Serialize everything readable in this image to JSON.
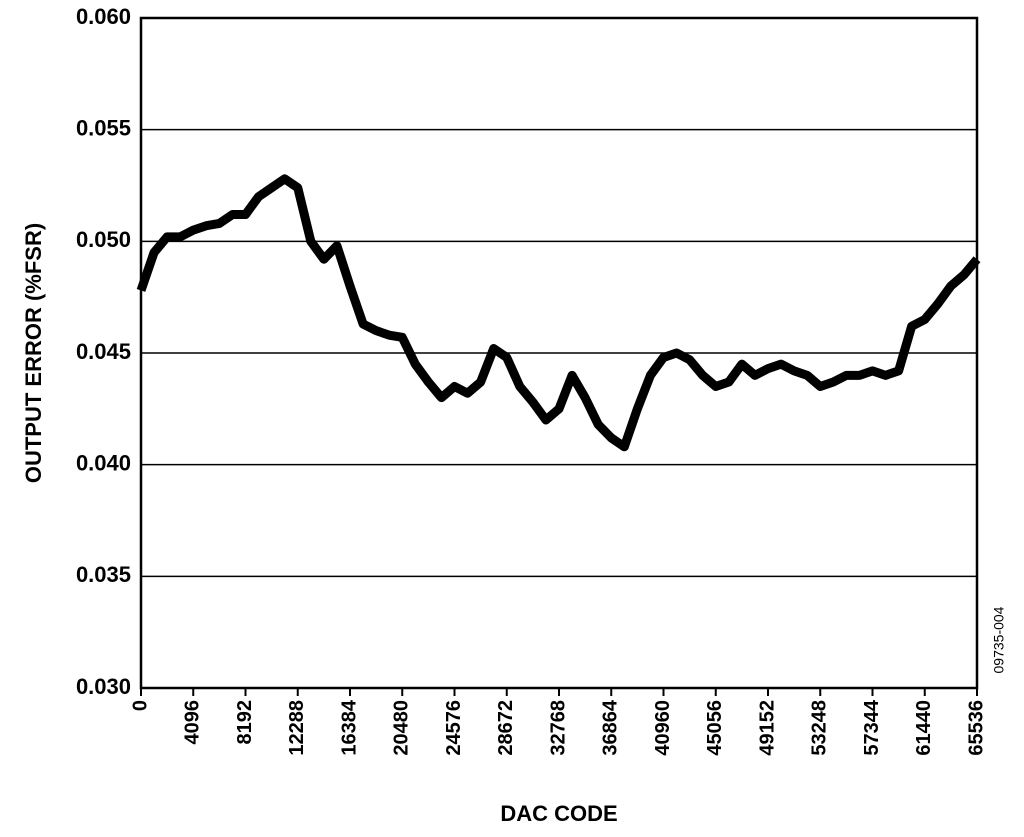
{
  "chart_data": {
    "type": "line",
    "x_label": "DAC CODE",
    "y_label": "OUTPUT ERROR (%FSR)",
    "figure_id": "09735-004",
    "xlim": [
      0,
      65536
    ],
    "xticks": [
      0,
      4096,
      8192,
      12288,
      16384,
      20480,
      24576,
      28672,
      32768,
      36864,
      40960,
      45056,
      49152,
      53248,
      57344,
      61440,
      65536
    ],
    "ylim": [
      0.03,
      0.06
    ],
    "yticks": [
      {
        "value": 0.03,
        "label": "0.030"
      },
      0.035,
      {
        "value": 0.04,
        "label": "0.040"
      },
      0.045,
      {
        "value": 0.05,
        "label": "0.050"
      },
      0.055,
      {
        "value": 0.06,
        "label": "0.060"
      }
    ],
    "grid": true,
    "color": "#000000",
    "x": [
      0,
      1024,
      2048,
      3072,
      4096,
      5120,
      6144,
      7168,
      8192,
      9216,
      10240,
      11264,
      12288,
      13312,
      14336,
      15360,
      16384,
      17408,
      18432,
      19456,
      20480,
      21504,
      22528,
      23552,
      24576,
      25600,
      26624,
      27648,
      28672,
      29696,
      30720,
      31744,
      32768,
      33792,
      34816,
      35840,
      36864,
      37888,
      38912,
      39936,
      40960,
      41984,
      43008,
      44032,
      45056,
      46080,
      47104,
      48128,
      49152,
      50176,
      51200,
      52224,
      53248,
      54272,
      55296,
      56320,
      57344,
      58368,
      59392,
      60416,
      61440,
      62464,
      63488,
      64512,
      65536
    ],
    "values": [
      0.0478,
      0.0495,
      0.0502,
      0.0502,
      0.0505,
      0.0507,
      0.0508,
      0.0512,
      0.0512,
      0.052,
      0.0524,
      0.0528,
      0.0524,
      0.05,
      0.0492,
      0.0498,
      0.048,
      0.0463,
      0.046,
      0.0458,
      0.0457,
      0.0445,
      0.0437,
      0.043,
      0.0435,
      0.0432,
      0.0437,
      0.0452,
      0.0448,
      0.0435,
      0.0428,
      0.042,
      0.0425,
      0.044,
      0.043,
      0.0418,
      0.0412,
      0.0408,
      0.0425,
      0.044,
      0.0448,
      0.045,
      0.0447,
      0.044,
      0.0435,
      0.0437,
      0.0445,
      0.044,
      0.0443,
      0.0445,
      0.0442,
      0.044,
      0.0435,
      0.0437,
      0.044,
      0.044,
      0.0442,
      0.044,
      0.0442,
      0.0462,
      0.0465,
      0.0472,
      0.048,
      0.0485,
      0.0492
    ]
  }
}
